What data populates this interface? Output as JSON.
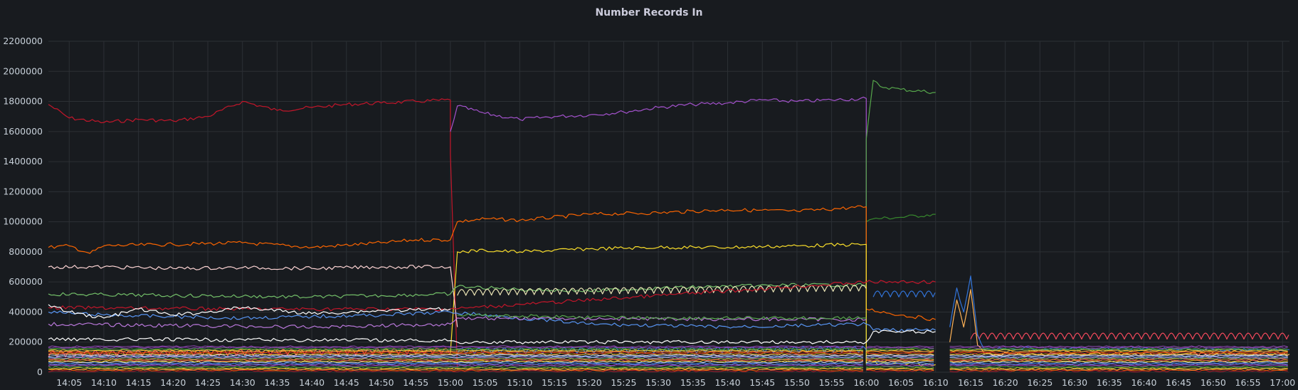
{
  "panel": {
    "title": "Number Records In"
  },
  "chart_data": {
    "type": "line",
    "title": "Number Records In",
    "xlabel": "",
    "ylabel": "",
    "ylim": [
      0,
      2200000
    ],
    "grid": true,
    "legend": "none",
    "y_ticks": [
      "0",
      "200000",
      "400000",
      "600000",
      "800000",
      "1000000",
      "1200000",
      "1400000",
      "1600000",
      "1800000",
      "2000000",
      "2200000"
    ],
    "x_ticks": [
      "14:05",
      "14:10",
      "14:15",
      "14:20",
      "14:25",
      "14:30",
      "14:35",
      "14:40",
      "14:45",
      "14:50",
      "14:55",
      "15:00",
      "15:05",
      "15:10",
      "15:15",
      "15:20",
      "15:25",
      "15:30",
      "15:35",
      "15:40",
      "15:45",
      "15:50",
      "15:55",
      "16:00",
      "16:05",
      "16:10",
      "16:15",
      "16:20",
      "16:25",
      "16:30",
      "16:35",
      "16:40",
      "16:45",
      "16:50",
      "16:55",
      "17:00"
    ],
    "x_range": [
      "14:02",
      "17:01"
    ],
    "gaps": [
      [
        "16:10",
        "16:12"
      ]
    ],
    "series_colors": [
      "#c4162a",
      "#fa6400",
      "#ffb357",
      "#fade2a",
      "#56a64b",
      "#37872d",
      "#8f3bb8",
      "#a352cc",
      "#5794f2",
      "#3274d9",
      "#ffffff",
      "#f2cc0c",
      "#f2495c",
      "#ff9830",
      "#73bf69",
      "#b877d9",
      "#8ab8ff",
      "#c0d8ff",
      "#fcd3d3",
      "#e0b400"
    ],
    "series": [
      {
        "color": "#c4162a",
        "points": [
          [
            "14:02",
            1780000
          ],
          [
            "14:05",
            1690000
          ],
          [
            "14:10",
            1660000
          ],
          [
            "14:15",
            1680000
          ],
          [
            "14:20",
            1670000
          ],
          [
            "14:25",
            1700000
          ],
          [
            "14:30",
            1800000
          ],
          [
            "14:35",
            1740000
          ],
          [
            "14:40",
            1760000
          ],
          [
            "14:45",
            1780000
          ],
          [
            "14:50",
            1790000
          ],
          [
            "14:55",
            1800000
          ],
          [
            "15:00",
            1810000
          ],
          [
            "15:00",
            1450000
          ],
          [
            "15:01",
            20000
          ]
        ]
      },
      {
        "color": "#a352cc",
        "points": [
          [
            "15:00",
            1600000
          ],
          [
            "15:01",
            1770000
          ],
          [
            "15:05",
            1720000
          ],
          [
            "15:10",
            1680000
          ],
          [
            "15:15",
            1700000
          ],
          [
            "15:20",
            1710000
          ],
          [
            "15:25",
            1730000
          ],
          [
            "15:30",
            1760000
          ],
          [
            "15:35",
            1780000
          ],
          [
            "15:40",
            1790000
          ],
          [
            "15:45",
            1810000
          ],
          [
            "15:50",
            1800000
          ],
          [
            "15:55",
            1810000
          ],
          [
            "16:00",
            1820000
          ],
          [
            "16:00",
            60000
          ]
        ]
      },
      {
        "color": "#56a64b",
        "points": [
          [
            "16:00",
            50000
          ],
          [
            "16:00",
            1550000
          ],
          [
            "16:01",
            1940000
          ],
          [
            "16:02",
            1900000
          ],
          [
            "16:05",
            1880000
          ],
          [
            "16:10",
            1860000
          ]
        ]
      },
      {
        "color": "#37872d",
        "points": [
          [
            "16:00",
            1000000
          ],
          [
            "16:01",
            1020000
          ],
          [
            "16:05",
            1030000
          ],
          [
            "16:10",
            1050000
          ]
        ]
      },
      {
        "color": "#fa6400",
        "points": [
          [
            "14:02",
            830000
          ],
          [
            "14:05",
            840000
          ],
          [
            "14:08",
            790000
          ],
          [
            "14:10",
            840000
          ],
          [
            "14:20",
            850000
          ],
          [
            "14:30",
            860000
          ],
          [
            "14:40",
            830000
          ],
          [
            "14:50",
            860000
          ],
          [
            "14:55",
            880000
          ],
          [
            "15:00",
            880000
          ],
          [
            "15:01",
            1000000
          ],
          [
            "15:05",
            1020000
          ],
          [
            "15:10",
            1010000
          ],
          [
            "15:20",
            1050000
          ],
          [
            "15:30",
            1060000
          ],
          [
            "15:40",
            1080000
          ],
          [
            "15:50",
            1070000
          ],
          [
            "16:00",
            1100000
          ],
          [
            "16:00",
            420000
          ],
          [
            "16:05",
            380000
          ],
          [
            "16:10",
            350000
          ]
        ]
      },
      {
        "color": "#fade2a",
        "points": [
          [
            "15:00",
            120000
          ],
          [
            "15:01",
            800000
          ],
          [
            "15:05",
            810000
          ],
          [
            "15:10",
            800000
          ],
          [
            "15:20",
            820000
          ],
          [
            "15:30",
            830000
          ],
          [
            "15:40",
            830000
          ],
          [
            "15:50",
            840000
          ],
          [
            "16:00",
            850000
          ],
          [
            "16:00",
            60000
          ],
          [
            "16:10",
            50000
          ]
        ]
      },
      {
        "color": "#fcd3d3",
        "points": [
          [
            "14:02",
            700000
          ],
          [
            "14:10",
            700000
          ],
          [
            "14:20",
            690000
          ],
          [
            "14:30",
            695000
          ],
          [
            "14:40",
            690000
          ],
          [
            "14:50",
            700000
          ],
          [
            "15:00",
            700000
          ],
          [
            "15:01",
            300000
          ]
        ]
      },
      {
        "color": "#73bf69",
        "points": [
          [
            "14:02",
            520000
          ],
          [
            "14:10",
            515000
          ],
          [
            "14:20",
            510000
          ],
          [
            "14:30",
            505000
          ],
          [
            "14:40",
            500000
          ],
          [
            "14:50",
            510000
          ],
          [
            "15:00",
            520000
          ],
          [
            "15:01",
            570000
          ],
          [
            "15:10",
            550000
          ],
          [
            "15:20",
            540000
          ],
          [
            "15:30",
            560000
          ],
          [
            "15:40",
            570000
          ],
          [
            "15:50",
            580000
          ],
          [
            "16:00",
            580000
          ]
        ]
      },
      {
        "color": "#e9e3b4",
        "wave": true,
        "points": [
          [
            "15:01",
            510000
          ],
          [
            "16:00",
            540000
          ]
        ]
      },
      {
        "color": "#c4162a",
        "points": [
          [
            "14:02",
            430000
          ],
          [
            "14:30",
            420000
          ],
          [
            "15:00",
            420000
          ],
          [
            "16:00",
            600000
          ],
          [
            "16:10",
            600000
          ]
        ]
      },
      {
        "color": "#5794f2",
        "points": [
          [
            "14:02",
            400000
          ],
          [
            "14:10",
            380000
          ],
          [
            "14:20",
            370000
          ],
          [
            "14:30",
            360000
          ],
          [
            "14:40",
            370000
          ],
          [
            "14:50",
            380000
          ],
          [
            "15:00",
            400000
          ],
          [
            "15:05",
            380000
          ],
          [
            "15:20",
            320000
          ],
          [
            "15:40",
            300000
          ],
          [
            "16:00",
            320000
          ],
          [
            "16:01",
            280000
          ],
          [
            "16:10",
            280000
          ]
        ]
      },
      {
        "color": "#3274d9",
        "wave": true,
        "points": [
          [
            "16:01",
            500000
          ],
          [
            "16:10",
            500000
          ]
        ]
      },
      {
        "color": "#ffffff",
        "points": [
          [
            "14:02",
            450000
          ],
          [
            "14:05",
            400000
          ],
          [
            "14:10",
            360000
          ],
          [
            "14:15",
            420000
          ],
          [
            "14:20",
            380000
          ],
          [
            "14:25",
            400000
          ],
          [
            "14:30",
            430000
          ],
          [
            "14:40",
            390000
          ],
          [
            "14:50",
            410000
          ],
          [
            "15:00",
            420000
          ]
        ]
      },
      {
        "color": "#b877d9",
        "points": [
          [
            "14:02",
            320000
          ],
          [
            "14:20",
            310000
          ],
          [
            "14:40",
            300000
          ],
          [
            "15:00",
            320000
          ],
          [
            "15:01",
            360000
          ],
          [
            "16:00",
            350000
          ]
        ]
      },
      {
        "color": "#56a64b",
        "points": [
          [
            "15:01",
            380000
          ],
          [
            "15:30",
            360000
          ],
          [
            "16:00",
            360000
          ]
        ]
      },
      {
        "color": "#ffffff",
        "points": [
          [
            "14:02",
            220000
          ],
          [
            "15:00",
            210000
          ],
          [
            "15:01",
            200000
          ],
          [
            "16:00",
            200000
          ],
          [
            "16:01",
            270000
          ],
          [
            "16:10",
            270000
          ]
        ]
      },
      {
        "color": "#f2495c",
        "wave": true,
        "points": [
          [
            "14:02",
            100000
          ],
          [
            "15:00",
            120000
          ]
        ]
      },
      {
        "color": "#3274d9",
        "wave": true,
        "points": [
          [
            "15:01",
            120000
          ],
          [
            "16:00",
            130000
          ]
        ]
      },
      {
        "color": "#f2495c",
        "wave": true,
        "points": [
          [
            "16:15",
            220000
          ],
          [
            "17:01",
            220000
          ]
        ]
      },
      {
        "color": "#3274d9",
        "points": [
          [
            "16:12",
            300000
          ],
          [
            "16:13",
            560000
          ],
          [
            "16:14",
            400000
          ],
          [
            "16:15",
            640000
          ],
          [
            "16:16",
            250000
          ],
          [
            "16:17",
            150000
          ],
          [
            "16:20",
            160000
          ],
          [
            "17:01",
            150000
          ]
        ]
      },
      {
        "color": "#ffb357",
        "points": [
          [
            "16:12",
            200000
          ],
          [
            "16:13",
            480000
          ],
          [
            "16:14",
            300000
          ],
          [
            "16:15",
            550000
          ],
          [
            "16:16",
            180000
          ],
          [
            "16:17",
            120000
          ],
          [
            "17:01",
            120000
          ]
        ]
      }
    ]
  }
}
